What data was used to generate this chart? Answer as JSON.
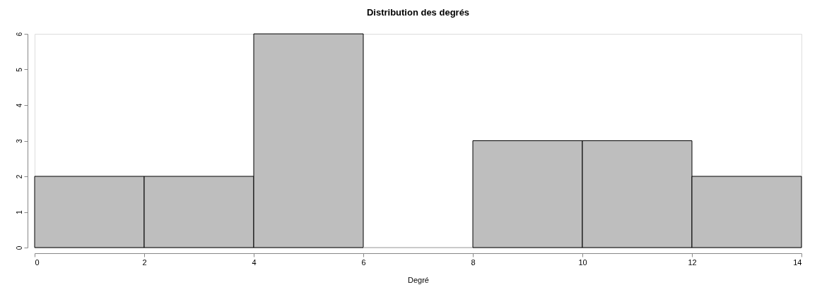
{
  "chart_data": {
    "type": "histogram",
    "title": "Distribution des degrés",
    "xlabel": "Degré",
    "bins": [
      0,
      2,
      4,
      6,
      8,
      10,
      12,
      14
    ],
    "values": [
      2,
      2,
      6,
      0,
      3,
      3,
      2
    ],
    "color": "#bebebe",
    "xlim": [
      0,
      14
    ],
    "xticks": [
      0,
      2,
      4,
      6,
      8,
      10,
      12,
      14
    ],
    "ylim": [
      0,
      6
    ],
    "yticks": [
      0,
      1,
      2,
      3,
      4,
      5,
      6
    ],
    "grid": false
  }
}
